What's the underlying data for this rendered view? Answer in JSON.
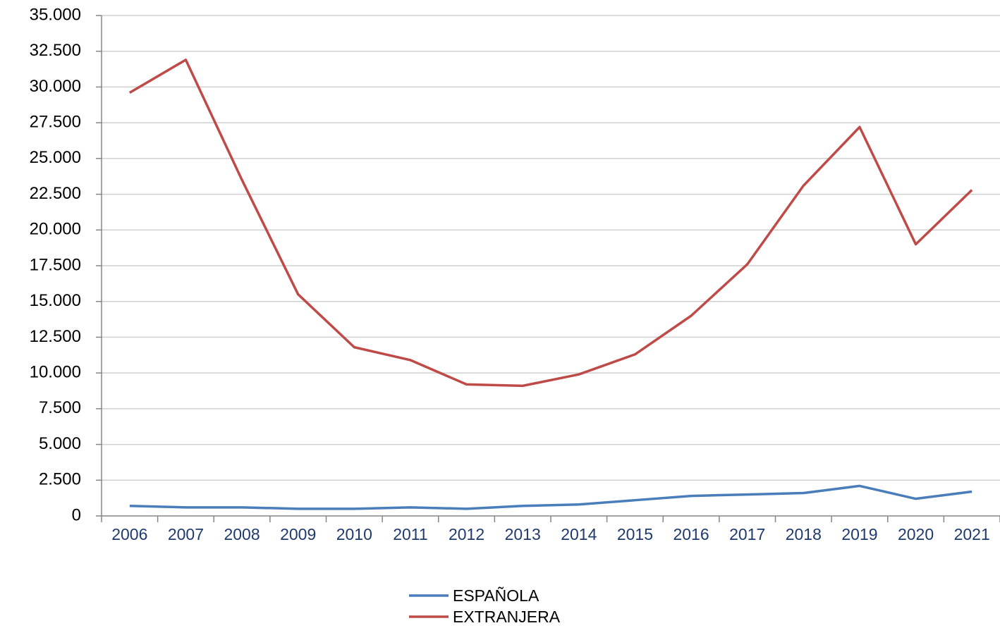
{
  "chart_data": {
    "type": "line",
    "categories": [
      "2006",
      "2007",
      "2008",
      "2009",
      "2010",
      "2011",
      "2012",
      "2013",
      "2014",
      "2015",
      "2016",
      "2017",
      "2018",
      "2019",
      "2020",
      "2021"
    ],
    "series": [
      {
        "name": "ESPAÑOLA",
        "color": "#4a7ebb",
        "values": [
          700,
          600,
          600,
          500,
          500,
          600,
          500,
          700,
          800,
          1100,
          1400,
          1500,
          1600,
          2100,
          1200,
          1700
        ]
      },
      {
        "name": "EXTRANJERA",
        "color": "#be4b48",
        "values": [
          29600,
          31900,
          23500,
          15500,
          11800,
          10900,
          9200,
          9100,
          9900,
          11300,
          14000,
          17600,
          23100,
          27200,
          19000,
          22800
        ]
      }
    ],
    "ylim": [
      0,
      35000
    ],
    "yticks": [
      0,
      {
        "value": 2500,
        "label": "2.500"
      },
      {
        "value": 5000,
        "label": "5.000"
      },
      {
        "value": 7500,
        "label": "7.500"
      },
      {
        "value": 10000,
        "label": "10.000"
      },
      {
        "value": 12500,
        "label": "12.500"
      },
      {
        "value": 15000,
        "label": "15.000"
      },
      {
        "value": 17500,
        "label": "17.500"
      },
      {
        "value": 20000,
        "label": "20.000"
      },
      {
        "value": 22500,
        "label": "22.500"
      },
      {
        "value": 25000,
        "label": "25.000"
      },
      {
        "value": 27500,
        "label": "27.500"
      },
      {
        "value": 30000,
        "label": "30.000"
      },
      {
        "value": 32500,
        "label": "32.500"
      },
      {
        "value": 35000,
        "label": "35.000"
      }
    ],
    "grid": true,
    "legend": "bottom"
  }
}
